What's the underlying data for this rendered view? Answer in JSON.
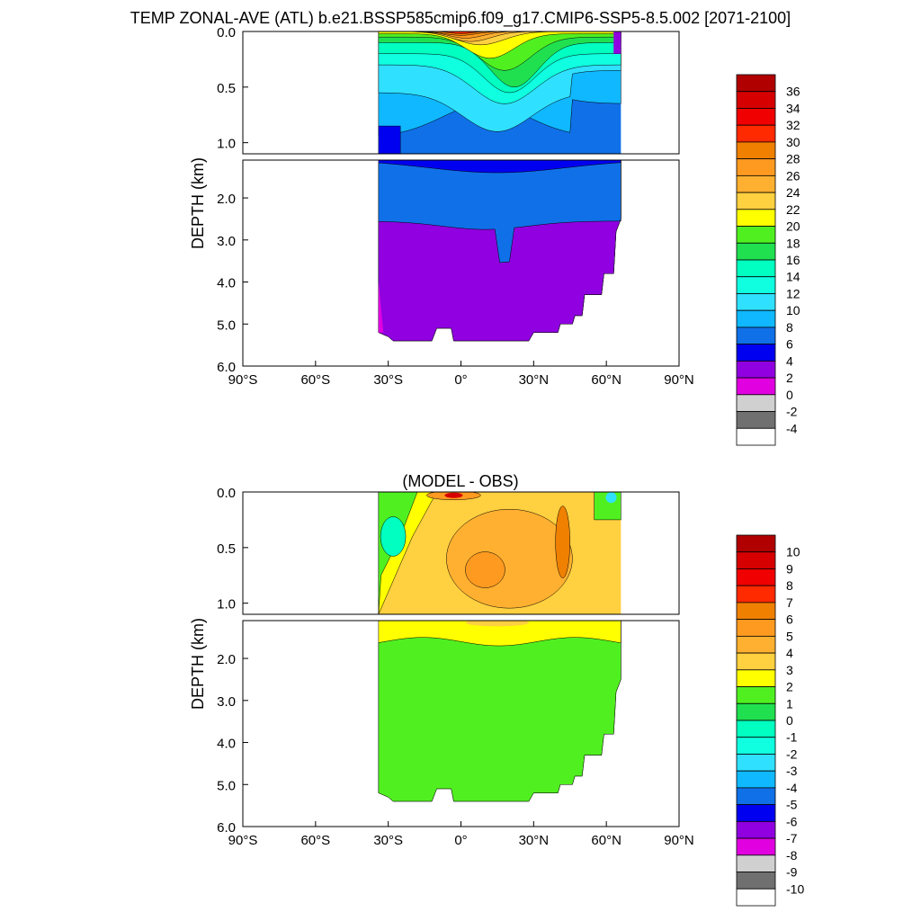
{
  "figure": {
    "title": "TEMP ZONAL-AVE (ATL) b.e21.BSSP585cmip6.f09_g17.CMIP6-SSP5-8.5.002 [2071-2100]"
  },
  "chart_data": [
    {
      "type": "heatmap",
      "title": "",
      "ylabel": "DEPTH (km)",
      "xlabel": "",
      "x_ticks": [
        "90°S",
        "60°S",
        "30°S",
        "0°",
        "30°N",
        "60°N",
        "90°N"
      ],
      "y_ticks_upper": [
        "0.0",
        "0.5",
        "1.0"
      ],
      "y_ticks_lower": [
        "2.0",
        "3.0",
        "4.0",
        "5.0",
        "6.0"
      ],
      "xlim": [
        -90,
        90
      ],
      "ylim_km": [
        0,
        6
      ],
      "colorbar": {
        "labels": [
          "36",
          "34",
          "32",
          "30",
          "28",
          "26",
          "24",
          "22",
          "20",
          "18",
          "16",
          "14",
          "12",
          "10",
          "8",
          "6",
          "4",
          "2",
          "0",
          "-2",
          "-4"
        ],
        "colors": [
          "#b00000",
          "#d60000",
          "#f00000",
          "#ff2a00",
          "#f08000",
          "#ff9a20",
          "#ffb030",
          "#ffd040",
          "#ffff00",
          "#50f020",
          "#20e050",
          "#00ffc0",
          "#10ffe0",
          "#30e0ff",
          "#10b8ff",
          "#1070e8",
          "#0000f0",
          "#9000e0",
          "#e000e0",
          "#d0d0d0",
          "#707070",
          "#ffffff"
        ]
      },
      "regions": {
        "surface_max": 30,
        "upper_ocean": "8-16",
        "intermediate": "6-8",
        "deep": "4-6",
        "abyss": "2-4"
      }
    },
    {
      "type": "heatmap",
      "title": "(MODEL - OBS)",
      "ylabel": "DEPTH (km)",
      "xlabel": "",
      "x_ticks": [
        "90°S",
        "60°S",
        "30°S",
        "0°",
        "30°N",
        "60°N",
        "90°N"
      ],
      "y_ticks_upper": [
        "0.0",
        "0.5",
        "1.0"
      ],
      "y_ticks_lower": [
        "2.0",
        "3.0",
        "4.0",
        "5.0",
        "6.0"
      ],
      "xlim": [
        -90,
        90
      ],
      "ylim_km": [
        0,
        6
      ],
      "colorbar": {
        "labels": [
          "10",
          "9",
          "8",
          "7",
          "6",
          "5",
          "4",
          "3",
          "2",
          "1",
          "0",
          "-1",
          "-2",
          "-3",
          "-4",
          "-5",
          "-6",
          "-7",
          "-8",
          "-9",
          "-10"
        ],
        "colors": [
          "#b00000",
          "#d60000",
          "#f00000",
          "#ff2a00",
          "#f08000",
          "#ff9a20",
          "#ffb030",
          "#ffd040",
          "#ffff00",
          "#50f020",
          "#20e050",
          "#00ffc0",
          "#10ffe0",
          "#30e0ff",
          "#10b8ff",
          "#1070e8",
          "#0000f0",
          "#9000e0",
          "#e000e0",
          "#d0d0d0",
          "#707070",
          "#ffffff"
        ]
      },
      "regions": {
        "upper_ocean": "3-5",
        "deep": "1-2"
      }
    }
  ]
}
